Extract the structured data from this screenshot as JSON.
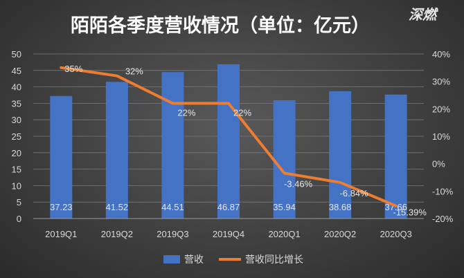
{
  "watermark": "深燃",
  "chart_data": {
    "type": "bar",
    "title": "陌陌各季度营收情况（单位：亿元）",
    "categories": [
      "2019Q1",
      "2019Q2",
      "2019Q3",
      "2019Q4",
      "2020Q1",
      "2020Q2",
      "2020Q3"
    ],
    "series": [
      {
        "name": "营收",
        "type": "bar",
        "axis": "left",
        "values": [
          37.23,
          41.52,
          44.51,
          46.87,
          35.94,
          38.68,
          37.66
        ],
        "labels": [
          "37.23",
          "41.52",
          "44.51",
          "46.87",
          "35.94",
          "38.68",
          "37.66"
        ],
        "color": "#4472C4"
      },
      {
        "name": "营收同比增长",
        "type": "line",
        "axis": "right",
        "values": [
          35,
          32,
          22,
          22,
          -3.46,
          -6.84,
          -15.39
        ],
        "labels": [
          "35%",
          "32%",
          "22%",
          "22%",
          "-3.46%",
          "-6.84%",
          "-15.39%"
        ],
        "color": "#ED7D31"
      }
    ],
    "y_left": {
      "min": 0,
      "max": 50,
      "step": 5,
      "ticks": [
        "0",
        "5",
        "10",
        "15",
        "20",
        "25",
        "30",
        "35",
        "40",
        "45",
        "50"
      ]
    },
    "y_right": {
      "min": -20,
      "max": 40,
      "step": 10,
      "ticks": [
        "-20%",
        "-10%",
        "0%",
        "10%",
        "20%",
        "30%",
        "40%"
      ]
    },
    "grid": true,
    "legend_position": "bottom"
  }
}
